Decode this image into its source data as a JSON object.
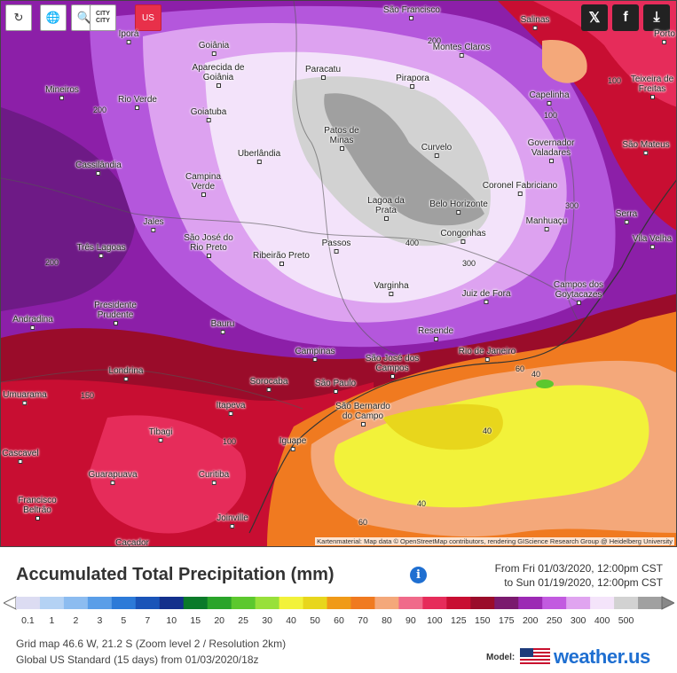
{
  "toolbar": {
    "reload_icon": "reload-icon",
    "globe_icon": "globe-icon",
    "zoom_icon": "zoom-icon",
    "city_label_top": "CITY",
    "city_label_bottom": "CITY",
    "us_label": "US"
  },
  "share": {
    "twitter_icon": "twitter-icon",
    "facebook_icon": "facebook-icon",
    "download_icon": "download-icon"
  },
  "map": {
    "attribution": "Kartenmaterial: Map data © OpenStreetMap contributors, rendering GIScience Research Group @ Heidelberg University",
    "cities": [
      {
        "name": "São Francisco"
      },
      {
        "name": "Salinas"
      },
      {
        "name": "Porto"
      },
      {
        "name": "Iporá"
      },
      {
        "name": "Montes Claros"
      },
      {
        "name": "Goiânia"
      },
      {
        "name": "Aparecida de Goiânia"
      },
      {
        "name": "Paracatu"
      },
      {
        "name": "Pirapora"
      },
      {
        "name": "Teixeira de Freitas"
      },
      {
        "name": "Mineiros"
      },
      {
        "name": "Rio Verde"
      },
      {
        "name": "Goiatuba"
      },
      {
        "name": "Capelinha"
      },
      {
        "name": "Patos de Minas"
      },
      {
        "name": "Governador Valadares"
      },
      {
        "name": "São Mateus"
      },
      {
        "name": "Uberlândia"
      },
      {
        "name": "Curvelo"
      },
      {
        "name": "Cassilândia"
      },
      {
        "name": "Campina Verde"
      },
      {
        "name": "Coronel Fabriciano"
      },
      {
        "name": "Lagoa da Prata"
      },
      {
        "name": "Belo Horizonte"
      },
      {
        "name": "Manhuaçu"
      },
      {
        "name": "Serra"
      },
      {
        "name": "Jales"
      },
      {
        "name": "Congonhas"
      },
      {
        "name": "Vila Velha"
      },
      {
        "name": "São José do Rio Preto"
      },
      {
        "name": "Três Lagoas"
      },
      {
        "name": "Passos"
      },
      {
        "name": "Ribeirão Preto"
      },
      {
        "name": "Campos dos Goytacazes"
      },
      {
        "name": "Varginha"
      },
      {
        "name": "Juiz de Fora"
      },
      {
        "name": "Presidente Prudente"
      },
      {
        "name": "Andradina"
      },
      {
        "name": "Bauru"
      },
      {
        "name": "Resende"
      },
      {
        "name": "Campinas"
      },
      {
        "name": "Rio de Janeiro"
      },
      {
        "name": "São José dos Campos"
      },
      {
        "name": "Londrina"
      },
      {
        "name": "Sorocaba"
      },
      {
        "name": "São Paulo"
      },
      {
        "name": "Umuarama"
      },
      {
        "name": "Itapeva"
      },
      {
        "name": "São Bernardo do Campo"
      },
      {
        "name": "Tibagi"
      },
      {
        "name": "Iguape"
      },
      {
        "name": "Cascavel"
      },
      {
        "name": "Guarapuava"
      },
      {
        "name": "Curitiba"
      },
      {
        "name": "Francisco Beltrão"
      },
      {
        "name": "Joinville"
      },
      {
        "name": "Caçador"
      }
    ],
    "isolines": [
      "200",
      "300",
      "200",
      "400",
      "300",
      "200",
      "100",
      "150",
      "100",
      "60",
      "40",
      "40",
      "60",
      "100",
      "40"
    ]
  },
  "title": "Accumulated Total Precipitation (mm)",
  "info_icon": "info-icon",
  "date_from": "From Fri 01/03/2020, 12:00pm CST",
  "date_to": "to Sun 01/19/2020, 12:00pm CST",
  "legend": {
    "labels": [
      "0.1",
      "1",
      "2",
      "3",
      "5",
      "7",
      "10",
      "15",
      "20",
      "25",
      "30",
      "40",
      "50",
      "60",
      "70",
      "80",
      "90",
      "100",
      "125",
      "150",
      "175",
      "200",
      "250",
      "300",
      "400",
      "500"
    ],
    "colors": [
      "#dcdcf2",
      "#b4d2f4",
      "#8cbcf0",
      "#5a9ee8",
      "#2c7ad8",
      "#1a54b8",
      "#13308c",
      "#0a7a2a",
      "#2aa42a",
      "#5cc82e",
      "#98e03a",
      "#f2f23a",
      "#e8d61c",
      "#f09a18",
      "#f07a20",
      "#f4a87a",
      "#f06a8a",
      "#e62c5a",
      "#c80e32",
      "#9a0c2a",
      "#7a1a6e",
      "#9c2ab4",
      "#c25ae0",
      "#e0a4f0",
      "#f4e4fa",
      "#d2d2d2",
      "#a0a0a0"
    ]
  },
  "grid_info": "Grid map 46.6 W, 21.2 S (Zoom level 2 / Resolution 2km)",
  "model_info": "Global US Standard (15 days) from 01/03/2020/18z",
  "model_label": "Model:",
  "brand": "weather.us"
}
